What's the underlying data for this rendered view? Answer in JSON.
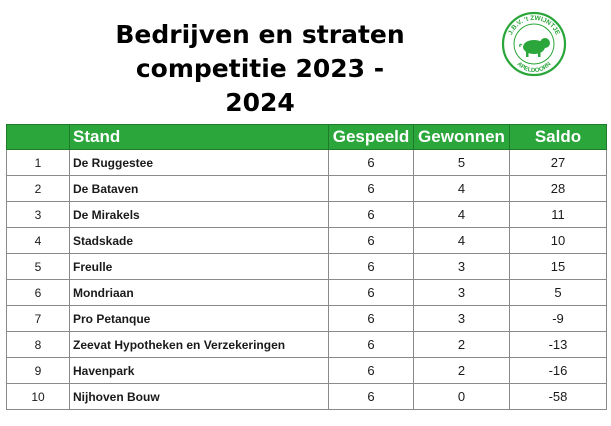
{
  "header": {
    "title_line1": "Bedrijven en straten",
    "title_line2": "competitie 2023 - 2024",
    "logo": {
      "text_top": "J.B.V. 't ZWIJNTJE",
      "text_bottom": "APELDOORN",
      "color": "#2aa63a"
    }
  },
  "table": {
    "columns": [
      "",
      "Stand",
      "Gespeeld",
      "Gewonnen",
      "Saldo"
    ],
    "rows": [
      {
        "rank": "1",
        "team": "De Ruggestee",
        "played": "6",
        "won": "5",
        "saldo": "27"
      },
      {
        "rank": "2",
        "team": "De Bataven",
        "played": "6",
        "won": "4",
        "saldo": "28"
      },
      {
        "rank": "3",
        "team": "De Mirakels",
        "played": "6",
        "won": "4",
        "saldo": "11"
      },
      {
        "rank": "4",
        "team": "Stadskade",
        "played": "6",
        "won": "4",
        "saldo": "10"
      },
      {
        "rank": "5",
        "team": "Freulle",
        "played": "6",
        "won": "3",
        "saldo": "15"
      },
      {
        "rank": "6",
        "team": "Mondriaan",
        "played": "6",
        "won": "3",
        "saldo": "5"
      },
      {
        "rank": "7",
        "team": "Pro Petanque",
        "played": "6",
        "won": "3",
        "saldo": "-9"
      },
      {
        "rank": "8",
        "team": "Zeevat Hypotheken en Verzekeringen",
        "played": "6",
        "won": "2",
        "saldo": "-13"
      },
      {
        "rank": "9",
        "team": "Havenpark",
        "played": "6",
        "won": "2",
        "saldo": "-16"
      },
      {
        "rank": "10",
        "team": "Nijhoven Bouw",
        "played": "6",
        "won": "0",
        "saldo": "-58"
      }
    ]
  },
  "colors": {
    "header_bg": "#2aa63a",
    "team_text": "#1f3864",
    "rank_text": "#3d6fa8"
  }
}
